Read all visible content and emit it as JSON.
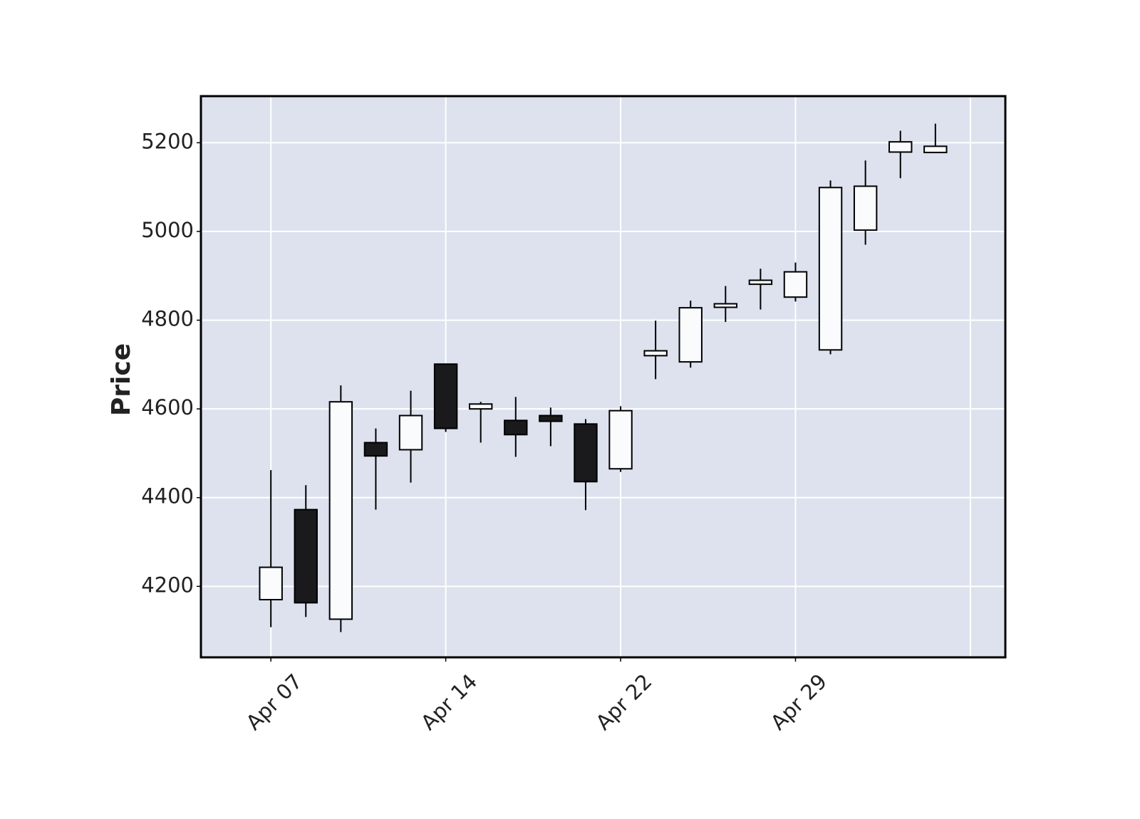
{
  "chart_data": {
    "type": "candlestick",
    "y_label": "Price",
    "categories": [
      "Apr 07",
      null,
      null,
      null,
      null,
      "Apr 14",
      null,
      null,
      null,
      null,
      "Apr 22",
      null,
      null,
      null,
      null,
      "Apr 29",
      null,
      null,
      null,
      null
    ],
    "open": [
      4170,
      4373,
      4126,
      4524,
      4508,
      4701,
      4600,
      4574,
      4585,
      4566,
      4465,
      4720,
      4706,
      4829,
      4881,
      4852,
      4733,
      5003,
      5179,
      5178
    ],
    "high": [
      4462,
      4428,
      4653,
      4556,
      4641,
      4701,
      4616,
      4627,
      4603,
      4577,
      4606,
      4799,
      4844,
      4877,
      4916,
      4930,
      5115,
      5160,
      5227,
      5243
    ],
    "low": [
      4108,
      4131,
      4097,
      4373,
      4434,
      4548,
      4524,
      4492,
      4516,
      4372,
      4458,
      4667,
      4693,
      4796,
      4824,
      4842,
      4723,
      4970,
      5120,
      5178
    ],
    "close": [
      4243,
      4163,
      4616,
      4494,
      4585,
      4556,
      4611,
      4542,
      4572,
      4436,
      4596,
      4731,
      4828,
      4837,
      4890,
      4909,
      5099,
      5102,
      5202,
      5192
    ],
    "up_color": "#fafbfd",
    "down_color": "#1a1a1c",
    "edge_color": "#000000",
    "background": "#dde2ee",
    "xlim": [
      -2,
      21
    ],
    "ylim": [
      4040,
      5305
    ],
    "yticks": [
      4200,
      4400,
      4600,
      4800,
      5000,
      5200
    ],
    "grid": true
  }
}
